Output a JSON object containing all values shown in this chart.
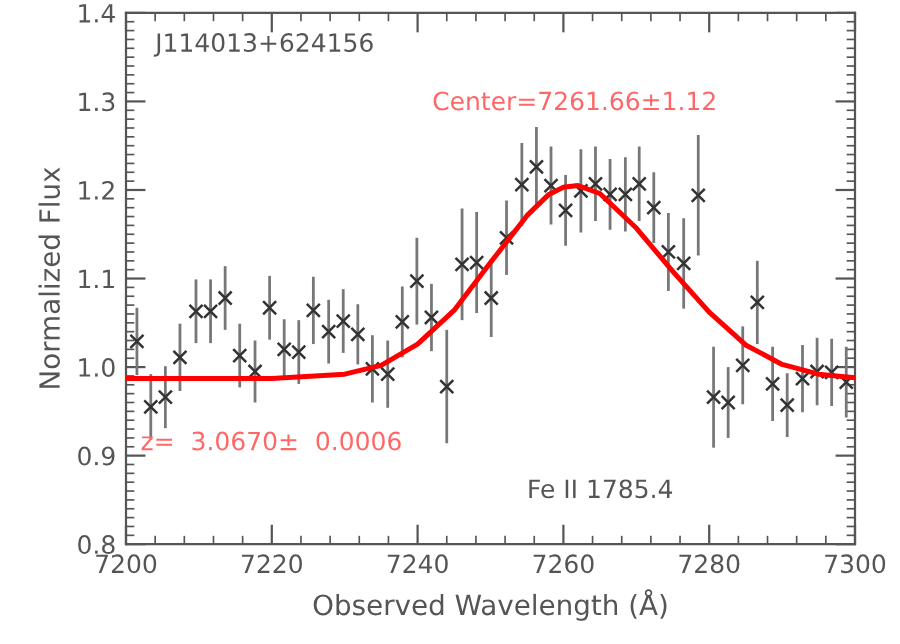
{
  "chart_data": {
    "type": "scatter",
    "xlabel": "Observed Wavelength (Å)",
    "ylabel": "Normalized Flux",
    "annotations": [
      "J114013+624156",
      "Center=7261.66±1.12",
      "z=  3.0670±  0.0006",
      "Fe II 1785.4"
    ],
    "xlim": [
      7200,
      7300
    ],
    "xticks": [
      7200,
      7220,
      7240,
      7260,
      7280,
      7300
    ],
    "ylim": [
      0.8,
      1.4
    ],
    "yticks": [
      0.8,
      0.9,
      {
        "value": 1.0,
        "label": "1.0"
      },
      1.1,
      1.2,
      1.3,
      1.4
    ],
    "grid": false,
    "legend": false,
    "marker": "cross",
    "series": [
      {
        "color": "#333333",
        "x": [
          7201.5,
          7203.4,
          7205.4,
          7207.4,
          7209.6,
          7211.6,
          7213.6,
          7215.6,
          7217.7,
          7219.7,
          7221.7,
          7223.7,
          7225.7,
          7227.8,
          7229.8,
          7231.8,
          7233.8,
          7235.9,
          7237.9,
          7239.9,
          7241.9,
          7244.0,
          7246.1,
          7248.1,
          7250.1,
          7252.2,
          7254.3,
          7256.3,
          7258.3,
          7260.3,
          7262.4,
          7264.4,
          7266.4,
          7268.5,
          7270.4,
          7272.4,
          7274.4,
          7276.5,
          7278.5,
          7280.6,
          7282.6,
          7284.6,
          7286.6,
          7288.7,
          7290.7,
          7292.8,
          7294.8,
          7296.8,
          7298.8
        ],
        "values": [
          1.029,
          0.955,
          0.966,
          1.011,
          1.063,
          1.063,
          1.078,
          1.013,
          0.995,
          1.067,
          1.02,
          1.017,
          1.064,
          1.04,
          1.052,
          1.037,
          0.998,
          0.992,
          1.051,
          1.097,
          1.056,
          0.978,
          1.116,
          1.118,
          1.078,
          1.146,
          1.206,
          1.226,
          1.205,
          1.177,
          1.199,
          1.207,
          1.195,
          1.195,
          1.207,
          1.18,
          1.13,
          1.117,
          1.194,
          0.966,
          0.96,
          1.002,
          1.073,
          0.981,
          0.957,
          0.987,
          0.995,
          0.994,
          0.983
        ],
        "errors": [
          0.038,
          0.037,
          0.035,
          0.038,
          0.036,
          0.036,
          0.036,
          0.036,
          0.035,
          0.036,
          0.034,
          0.036,
          0.038,
          0.036,
          0.036,
          0.034,
          0.038,
          0.038,
          0.04,
          0.049,
          0.038,
          0.064,
          0.063,
          0.057,
          0.044,
          0.042,
          0.047,
          0.045,
          0.044,
          0.04,
          0.047,
          0.042,
          0.04,
          0.042,
          0.042,
          0.04,
          0.044,
          0.051,
          0.068,
          0.057,
          0.04,
          0.044,
          0.047,
          0.042,
          0.036,
          0.038,
          0.038,
          0.038,
          0.04
        ]
      },
      {
        "type": "line",
        "color": "#ff0000",
        "line_style": "solid",
        "marker": "none",
        "x": [
          7200,
          7210,
          7220,
          7230,
          7235,
          7240,
          7245,
          7250,
          7255,
          7258,
          7260,
          7262,
          7265,
          7270,
          7275,
          7280,
          7285,
          7290,
          7295,
          7300
        ],
        "values": [
          0.987,
          0.987,
          0.987,
          0.992,
          1.002,
          1.026,
          1.064,
          1.118,
          1.171,
          1.195,
          1.203,
          1.205,
          1.196,
          1.157,
          1.108,
          1.062,
          1.025,
          1.003,
          0.992,
          0.988
        ]
      }
    ]
  }
}
